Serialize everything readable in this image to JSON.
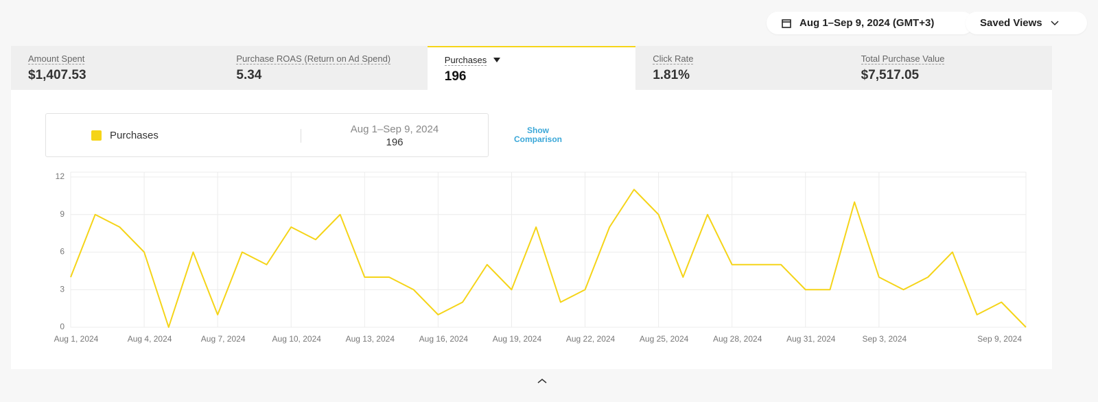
{
  "header": {
    "date_range": "Aug 1–Sep 9, 2024 (GMT+3)",
    "saved_views": "Saved Views"
  },
  "kpis": [
    {
      "label": "Amount Spent",
      "value": "$1,407.53"
    },
    {
      "label": "Purchase ROAS (Return on Ad Spend)",
      "value": "5.34"
    },
    {
      "label": "Purchases",
      "value": "196"
    },
    {
      "label": "Click Rate",
      "value": "1.81%"
    },
    {
      "label": "Total Purchase Value",
      "value": "$7,517.05"
    }
  ],
  "legend": {
    "range": "Aug 1–Sep 9, 2024",
    "total": "196"
  },
  "show_comparison": "Show Comparison",
  "chart_data": {
    "type": "line",
    "categories": [
      "Aug 1, 2024",
      null,
      null,
      "Aug 4, 2024",
      null,
      null,
      "Aug 7, 2024",
      null,
      null,
      "Aug 10, 2024",
      null,
      null,
      "Aug 13, 2024",
      null,
      null,
      "Aug 16, 2024",
      null,
      null,
      "Aug 19, 2024",
      null,
      null,
      "Aug 22, 2024",
      null,
      null,
      "Aug 25, 2024",
      null,
      null,
      "Aug 28, 2024",
      null,
      null,
      "Aug 31, 2024",
      null,
      null,
      "Sep 3, 2024",
      null,
      null,
      null,
      null,
      null,
      "Sep 9, 2024"
    ],
    "series": [
      {
        "name": "Purchases",
        "color": "#f5d418",
        "values": [
          4,
          9,
          8,
          6,
          0,
          6,
          1,
          6,
          5,
          8,
          7,
          9,
          4,
          4,
          3,
          1,
          2,
          5,
          3,
          8,
          2,
          3,
          8,
          11,
          9,
          4,
          9,
          5,
          5,
          5,
          3,
          3,
          10,
          4,
          3,
          4,
          6,
          1,
          2,
          0
        ]
      }
    ],
    "ylim": [
      0,
      12
    ],
    "yticks": [
      0,
      3,
      6,
      9,
      12
    ],
    "grid": true
  }
}
